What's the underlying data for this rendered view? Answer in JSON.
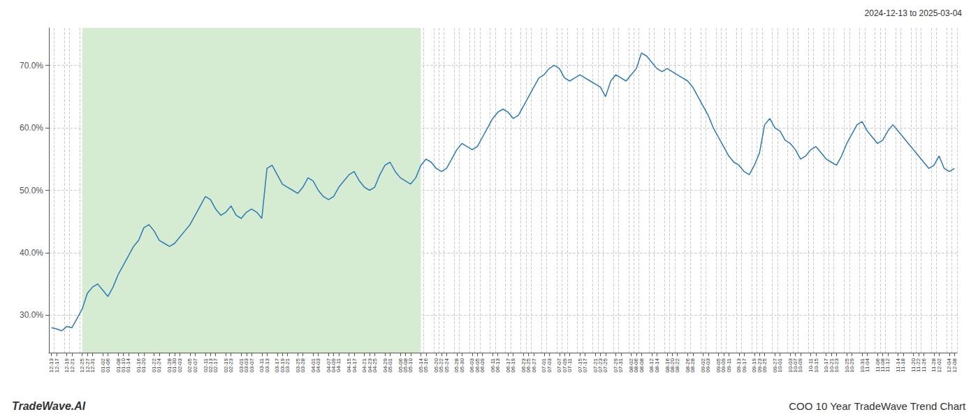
{
  "chart_data": {
    "type": "line",
    "title": "COO 10 Year TradeWave Trend Chart",
    "subtitle": "2024-12-13 to 2025-03-04",
    "annotations": [
      "TradeWave.AI"
    ],
    "color": "#2a7ab5",
    "grid": true,
    "ylim": [
      24,
      76
    ],
    "yticks": [
      {
        "value": 30.0,
        "label": "30.0%"
      },
      {
        "value": 40.0,
        "label": "40.0%"
      },
      {
        "value": 50.0,
        "label": "50.0%"
      },
      {
        "value": 60.0,
        "label": "60.0%"
      },
      {
        "value": 70.0,
        "label": "70.0%"
      }
    ],
    "shaded": {
      "from": "12-25",
      "to": "05-14",
      "color": "#d6ecd2"
    },
    "categories": [
      "12-13",
      "12-17",
      null,
      "12-19",
      "12-21",
      null,
      "12-25",
      "12-27",
      "12-31",
      null,
      "01-02",
      "01-06",
      null,
      "01-08",
      "01-10",
      "01-14",
      null,
      "01-16",
      "01-20",
      null,
      "01-22",
      "01-24",
      null,
      "01-28",
      "01-30",
      "02-03",
      null,
      "02-05",
      "02-07",
      null,
      "02-11",
      "02-13",
      "02-17",
      null,
      "02-19",
      "02-23",
      null,
      "03-01",
      "03-03",
      "03-07",
      null,
      "03-11",
      "03-13",
      null,
      "03-17",
      "03-19",
      "03-21",
      null,
      "03-25",
      "03-28",
      null,
      "04-01",
      "04-03",
      null,
      "04-07",
      "04-09",
      "04-11",
      null,
      "04-15",
      "04-17",
      null,
      "04-21",
      "04-23",
      "04-25",
      null,
      "04-29",
      "05-01",
      null,
      "05-06",
      "05-08",
      "05-10",
      null,
      "05-14",
      "05-16",
      null,
      "05-20",
      "05-22",
      "05-24",
      null,
      "05-28",
      "05-30",
      null,
      "06-03",
      "06-05",
      "06-09",
      null,
      "06-11",
      "06-13",
      null,
      "06-17",
      "06-19",
      null,
      "06-23",
      "06-25",
      "06-27",
      null,
      "07-01",
      "07-03",
      null,
      "07-07",
      "07-09",
      "07-11",
      null,
      "07-15",
      "07-17",
      null,
      "07-21",
      "07-23",
      "07-25",
      null,
      "07-29",
      "07-31",
      null,
      "08-02",
      "08-06",
      "08-08",
      null,
      "08-12",
      "08-14",
      null,
      "08-16",
      "08-20",
      "08-22",
      null,
      "08-26",
      "08-28",
      null,
      "09-02",
      "09-03",
      null,
      "09-05",
      "09-09",
      "09-11",
      null,
      "09-13",
      "09-17",
      null,
      "09-19",
      "09-23",
      "09-25",
      null,
      "09-27",
      "10-01",
      null,
      "10-03",
      "10-07",
      "10-09",
      null,
      "10-11",
      "10-15",
      null,
      "10-17",
      "10-21",
      "10-23",
      null,
      "10-25",
      "10-29",
      null,
      "10-31",
      "11-04",
      null,
      "11-06",
      "11-08",
      "11-12",
      null,
      "11-14",
      "11-18",
      null,
      "11-20",
      "11-22",
      "11-26",
      null,
      "11-28",
      "12-02",
      null,
      "12-04",
      "12-08"
    ],
    "values": [
      28.0,
      27.8,
      27.5,
      28.2,
      28.0,
      29.5,
      31.0,
      33.5,
      34.5,
      35.0,
      34.0,
      33.0,
      34.5,
      36.5,
      38.0,
      39.5,
      41.0,
      42.0,
      44.0,
      44.5,
      43.5,
      42.0,
      41.5,
      41.0,
      41.5,
      42.5,
      43.5,
      44.5,
      46.0,
      47.5,
      49.0,
      48.5,
      47.0,
      46.0,
      46.5,
      47.5,
      46.0,
      45.5,
      46.5,
      47.0,
      46.5,
      45.5,
      53.5,
      54.0,
      52.5,
      51.0,
      50.5,
      50.0,
      49.5,
      50.5,
      52.0,
      51.5,
      50.0,
      49.0,
      48.5,
      49.0,
      50.5,
      51.5,
      52.5,
      53.0,
      51.5,
      50.5,
      50.0,
      50.5,
      52.5,
      54.0,
      54.5,
      53.0,
      52.0,
      51.5,
      51.0,
      52.0,
      54.0,
      55.0,
      54.5,
      53.5,
      53.0,
      53.5,
      55.0,
      56.5,
      57.5,
      57.0,
      56.5,
      57.0,
      58.5,
      60.0,
      61.5,
      62.5,
      63.0,
      62.5,
      61.5,
      62.0,
      63.5,
      65.0,
      66.5,
      68.0,
      68.5,
      69.5,
      70.0,
      69.5,
      68.0,
      67.5,
      68.0,
      68.5,
      68.0,
      67.5,
      67.0,
      66.5,
      65.0,
      67.5,
      68.5,
      68.0,
      67.5,
      68.5,
      69.5,
      72.0,
      71.5,
      70.5,
      69.5,
      69.0,
      69.5,
      69.0,
      68.5,
      68.0,
      67.5,
      66.5,
      65.0,
      63.5,
      62.0,
      60.0,
      58.5,
      57.0,
      55.5,
      54.5,
      54.0,
      53.0,
      52.5,
      54.0,
      56.0,
      60.5,
      61.5,
      60.0,
      59.5,
      58.0,
      57.5,
      56.5,
      55.0,
      55.5,
      56.5,
      57.0,
      56.0,
      55.0,
      54.5,
      54.0,
      55.5,
      57.5,
      59.0,
      60.5,
      61.0,
      59.5,
      58.5,
      57.5,
      58.0,
      59.5,
      60.5,
      59.5,
      58.5,
      57.5,
      56.5,
      55.5,
      54.5,
      53.5,
      54.0,
      55.5,
      53.5,
      53.0,
      53.5
    ]
  }
}
